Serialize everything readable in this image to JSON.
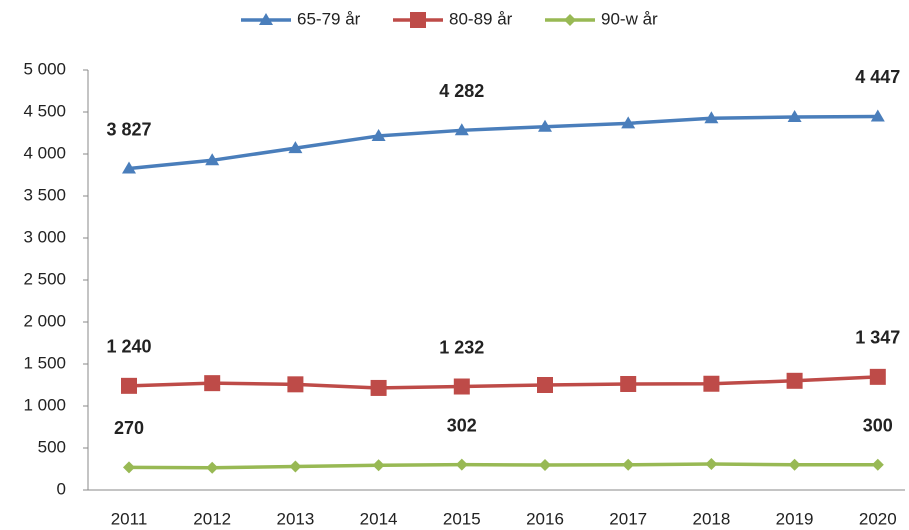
{
  "chart_data": {
    "type": "line",
    "categories": [
      "2011",
      "2012",
      "2013",
      "2014",
      "2015",
      "2016",
      "2017",
      "2018",
      "2019",
      "2020"
    ],
    "series": [
      {
        "name": "65-79 år",
        "color": "#4a7ebb",
        "marker": "triangle",
        "values": [
          3827,
          3925,
          4070,
          4215,
          4282,
          4325,
          4365,
          4425,
          4440,
          4447
        ],
        "value_labels": [
          "3 827",
          null,
          null,
          null,
          "4 282",
          null,
          null,
          null,
          null,
          "4 447"
        ]
      },
      {
        "name": "80-89 år",
        "color": "#be4b48",
        "marker": "square",
        "values": [
          1240,
          1272,
          1258,
          1215,
          1232,
          1250,
          1262,
          1265,
          1300,
          1347
        ],
        "value_labels": [
          "1 240",
          null,
          null,
          null,
          "1 232",
          null,
          null,
          null,
          null,
          "1 347"
        ]
      },
      {
        "name": "90-w år",
        "color": "#98b954",
        "marker": "diamond",
        "values": [
          270,
          265,
          280,
          295,
          302,
          298,
          300,
          310,
          300,
          300
        ],
        "value_labels": [
          "270",
          null,
          null,
          null,
          "302",
          null,
          null,
          null,
          null,
          "300"
        ]
      }
    ],
    "ylim": [
      0,
      5000
    ],
    "yticks": [
      0,
      500,
      {
        "value": 1000,
        "label": "1 000"
      },
      {
        "value": 1500,
        "label": "1 500"
      },
      {
        "value": 2000,
        "label": "2 000"
      },
      {
        "value": 2500,
        "label": "2 500"
      },
      {
        "value": 3000,
        "label": "3 000"
      },
      {
        "value": 3500,
        "label": "3 500"
      },
      {
        "value": 4000,
        "label": "4 000"
      },
      {
        "value": 4500,
        "label": "4 500"
      },
      {
        "value": 5000,
        "label": "5 000"
      }
    ],
    "legend": "top",
    "grid": false
  }
}
